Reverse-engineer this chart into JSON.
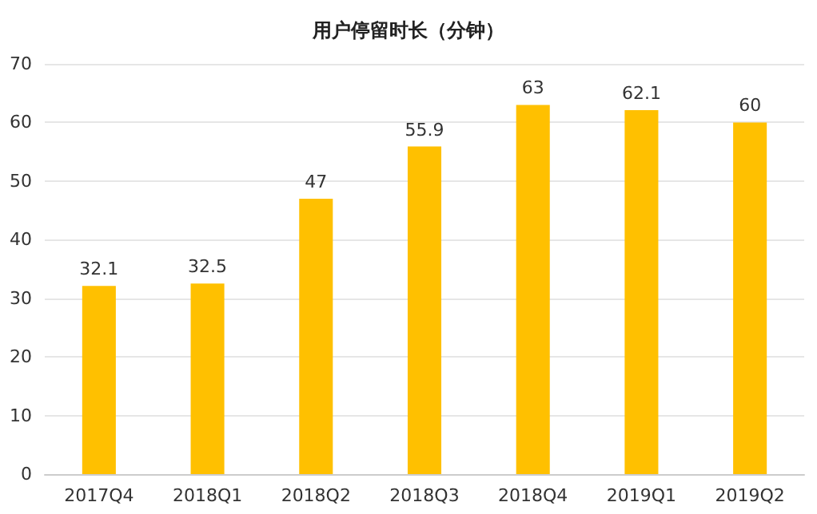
{
  "chart_data": {
    "type": "bar",
    "title": "用户停留时长（分钟）",
    "categories": [
      "2017Q4",
      "2018Q1",
      "2018Q2",
      "2018Q3",
      "2018Q4",
      "2019Q1",
      "2019Q2"
    ],
    "values": [
      32.1,
      32.5,
      47,
      55.9,
      63,
      62.1,
      60
    ],
    "color": "#ffc000",
    "ylim": [
      0,
      70
    ],
    "yticks": [
      0,
      10,
      20,
      30,
      40,
      50,
      60,
      70
    ],
    "grid": "y",
    "data_labels": true
  }
}
